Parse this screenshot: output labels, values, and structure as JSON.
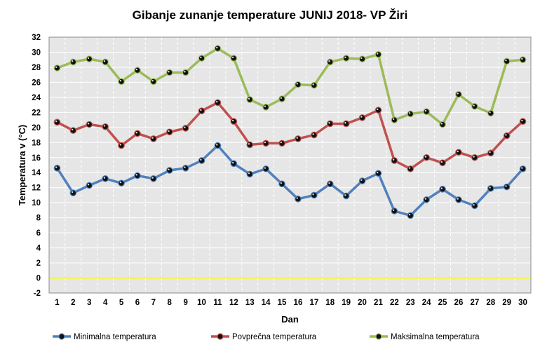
{
  "chart_data": {
    "type": "line",
    "title": "Gibanje  zunanje  temperature JUNIJ 2018- VP Žiri",
    "xlabel": "Dan",
    "ylabel": "Temperatura v (°C)",
    "ylim": [
      -2,
      32
    ],
    "yticks": [
      -2,
      0,
      2,
      4,
      6,
      8,
      10,
      12,
      14,
      16,
      18,
      20,
      22,
      24,
      26,
      28,
      30,
      32
    ],
    "grid": true,
    "legend_position": "bottom",
    "categories": [
      1,
      2,
      3,
      4,
      5,
      6,
      7,
      8,
      9,
      10,
      11,
      12,
      13,
      14,
      15,
      16,
      17,
      18,
      19,
      20,
      21,
      22,
      23,
      24,
      25,
      26,
      27,
      28,
      29,
      30
    ],
    "reference_line": {
      "value": 0,
      "color": "#FFFF00"
    },
    "series": [
      {
        "name": "Minimalna temperatura",
        "color": "#4F81BD",
        "values": [
          14.6,
          11.3,
          12.3,
          13.2,
          12.6,
          13.6,
          13.2,
          14.3,
          14.6,
          15.6,
          17.6,
          15.2,
          13.8,
          14.5,
          12.5,
          10.5,
          11.0,
          12.5,
          10.9,
          12.9,
          13.9,
          8.9,
          8.3,
          10.4,
          11.8,
          10.4,
          9.6,
          11.9,
          12.1,
          14.5
        ]
      },
      {
        "name": "Povprečna temperatura",
        "color": "#C0504D",
        "values": [
          20.7,
          19.6,
          20.4,
          20.1,
          17.6,
          19.2,
          18.5,
          19.4,
          19.9,
          22.2,
          23.3,
          20.8,
          17.7,
          17.9,
          17.9,
          18.5,
          19.0,
          20.5,
          20.5,
          21.3,
          22.3,
          15.6,
          14.5,
          16.0,
          15.3,
          16.7,
          16.0,
          16.6,
          18.9,
          20.8
        ]
      },
      {
        "name": "Maksimalna temperatura",
        "color": "#9BBB59",
        "values": [
          27.9,
          28.7,
          29.1,
          28.7,
          26.1,
          27.6,
          26.1,
          27.3,
          27.3,
          29.2,
          30.5,
          29.2,
          23.7,
          22.7,
          23.8,
          25.7,
          25.6,
          28.7,
          29.2,
          29.1,
          29.7,
          21.0,
          21.8,
          22.1,
          20.4,
          24.4,
          22.8,
          21.9,
          28.8,
          29.0
        ]
      }
    ]
  }
}
